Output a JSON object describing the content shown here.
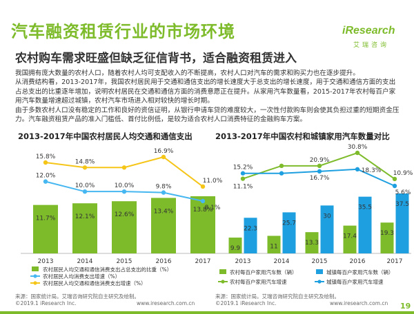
{
  "title": "汽车融资租赁行业的市场环境",
  "subtitle": "农村购车需求旺盛但缺乏征信背书，适合融资租赁进入",
  "logo": {
    "word": "iResearch",
    "sub": "艾瑞咨询"
  },
  "paragraphs": [
    "我国拥有庞大数量的农村人口，随着农村人均可支配收入的不断提高，农村人口对汽车的需求和购买力也在逐步提升。",
    "从消费结构看，2013-2017年，我国农村居民用于交通和通信支出的增长速度大于总支出的增长速度，用于交通和通信方面的支出占总支出的比重逐年增加，说明农村居民在交通和通信方面的消费意愿正在提升。从家用汽车数量看，2015-2017年农村每百户家用汽车数量增速超过城镇，农村汽车市场进入相对较快的增长时期。",
    "由于多数农村人口没有稳定的工作和良好的资信证明，从银行申请车贷的难度较大，一次性付款购车则会使其负担过重的短期资金压力。汽车融资租赁产品的准入门槛低、首付比例低，是较为适合农村人口消费特征的金融购车方案。"
  ],
  "colors": {
    "green": "#7dbb2a",
    "blue": "#1e9fe0",
    "yellow": "#f5c518",
    "lightblue": "#46b7f0"
  },
  "chart_data": [
    {
      "type": "bar",
      "title": "2013-2017年中国农村居民人均交通和通信支出",
      "categories": [
        "2013",
        "2014",
        "2015",
        "2016",
        "2017"
      ],
      "series": [
        {
          "name": "农村居民人均交通和通信消费支出占总支出的比重（%）",
          "kind": "bar",
          "values": [
            11.7,
            12.1,
            12.6,
            13.4,
            13.8
          ],
          "labels": [
            "11.7%",
            "12.1%",
            "12.6%",
            "13.4%",
            "13.8%"
          ]
        },
        {
          "name": "农村居民人均消费支出增速（%）",
          "kind": "line",
          "values": [
            12.0,
            10.0,
            10.0,
            9.8,
            8.1
          ],
          "labels": [
            "12.0%",
            "10.0%",
            "10.0%",
            "9.8%",
            "8.1%"
          ]
        },
        {
          "name": "农村居民人均交通和通信消费支出增速（%）",
          "kind": "line",
          "values": [
            15.8,
            14.8,
            14.8,
            16.9,
            11.0
          ],
          "labels": [
            "15.8%",
            "14.8%",
            "",
            "16.9%",
            "11.0%"
          ]
        }
      ]
    },
    {
      "type": "bar",
      "title": "2013-2017年中国农村和城镇家用汽车数量对比",
      "categories": [
        "2013",
        "2014",
        "2015",
        "2016",
        "2017"
      ],
      "series": [
        {
          "name": "农村每百户家用汽车数（辆）",
          "kind": "bar",
          "values": [
            9.9,
            11,
            13.3,
            17.4,
            19.3
          ],
          "labels": [
            "9.9",
            "11",
            "13.3",
            "17.4",
            "19.3"
          ]
        },
        {
          "name": "城镇每百户家用汽车数（辆）",
          "kind": "bar",
          "values": [
            22.3,
            25.7,
            30,
            35.5,
            37.5
          ],
          "labels": [
            "22.3",
            "25.7",
            "30",
            "35.5",
            "37.5"
          ]
        },
        {
          "name": "农村每百户家用汽车增速",
          "kind": "line",
          "values": [
            11.1,
            20.9,
            20.9,
            30.8,
            10.9
          ],
          "labels": [
            "11.1%",
            "",
            "20.9%",
            "30.8%",
            "10.9%"
          ]
        },
        {
          "name": "城镇每百户家用汽车增速",
          "kind": "line",
          "values": [
            15.2,
            15.2,
            16.7,
            18.3,
            5.6
          ],
          "labels": [
            "15.2%",
            "",
            "16.7%",
            "18.3%",
            "5.6%"
          ]
        }
      ]
    }
  ],
  "footer": {
    "source_left": "来源：国家统计局。艾瑞咨询研究院自主研究及绘制。",
    "source_right": "来源：国家统计局。艾瑞咨询研究院自主研究及绘制。",
    "copyright_left": "©2019.1 iResearch Inc.",
    "url_left": "www.iresearch.com.cn",
    "copyright_right": "©2019.1 iResearch Inc.",
    "url_right": "www.iresearch.com.cn",
    "page": "19"
  }
}
